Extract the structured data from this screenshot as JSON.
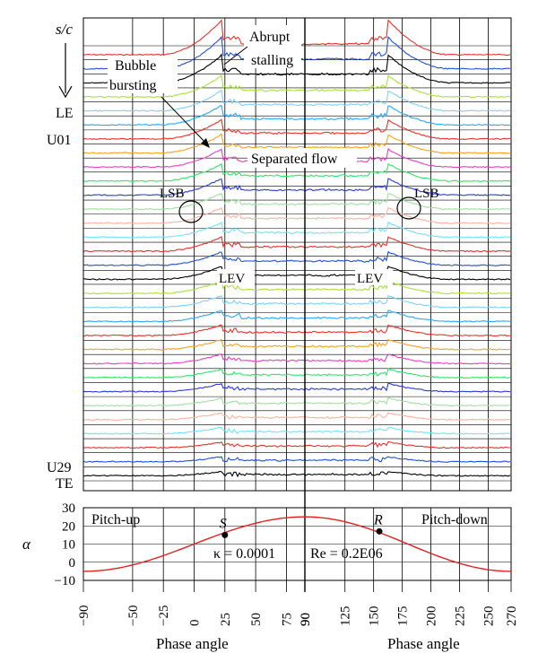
{
  "chart_data": [
    {
      "type": "line",
      "panel": "surface-pressure-traces",
      "x_axis": {
        "label": "Phase angle",
        "ticks": [
          -90,
          -50,
          -25,
          0,
          25,
          50,
          75,
          90
        ],
        "range": [
          -90,
          90
        ]
      },
      "x_axis_right": {
        "label": "Phase angle",
        "ticks": [
          90,
          125,
          150,
          175,
          200,
          225,
          250,
          270
        ],
        "range": [
          90,
          270
        ]
      },
      "y_axis": {
        "label": "s/c",
        "arrow": "down"
      },
      "row_labels": {
        "top_a": "LE",
        "top_b": "U01",
        "bottom_a": "U29",
        "bottom_b": "TE"
      },
      "annotations": {
        "abrupt_stalling_1": "Abrupt",
        "abrupt_stalling_2": "stalling",
        "bubble_bursting_1": "Bubble",
        "bubble_bursting_2": "bursting",
        "separated_flow": "Separated flow",
        "lsb_left": "LSB",
        "lsb_right": "LSB",
        "lev_left": "LEV",
        "lev_right": "LEV"
      },
      "series_count": 31,
      "series_colors": [
        "#e6312b",
        "#1f4fd9",
        "#000000",
        "#a7e23a",
        "#7fd0ff",
        "#2aa6ff",
        "#e8322a",
        "#f6a21c",
        "#e640c4",
        "#35e36a",
        "#2a38e0",
        "#9fe0a0",
        "#ffb0a0",
        "#6fe3ff"
      ],
      "grid": true
    },
    {
      "type": "line",
      "panel": "pitch-angle",
      "y_axis": {
        "label": "α",
        "ticks": [
          30,
          20,
          10,
          0,
          -10
        ],
        "range": [
          -10,
          30
        ]
      },
      "series": [
        {
          "x": [
            -90,
            -45,
            0,
            25,
            45,
            90,
            135,
            155,
            180,
            225,
            270
          ],
          "y": [
            -5,
            -0.5,
            10,
            15,
            19.5,
            25,
            19.5,
            17,
            10,
            -0.5,
            -5
          ],
          "color": "#e02020"
        }
      ],
      "points": [
        {
          "label": "S",
          "x": 25,
          "y": 15
        },
        {
          "label": "R",
          "x": 155,
          "y": 17
        }
      ],
      "texts": {
        "pitch_up": "Pitch-up",
        "pitch_down": "Pitch-down",
        "kappa": "κ = 0.0001",
        "reynolds": "Re = 0.2E06"
      },
      "grid": true
    }
  ]
}
